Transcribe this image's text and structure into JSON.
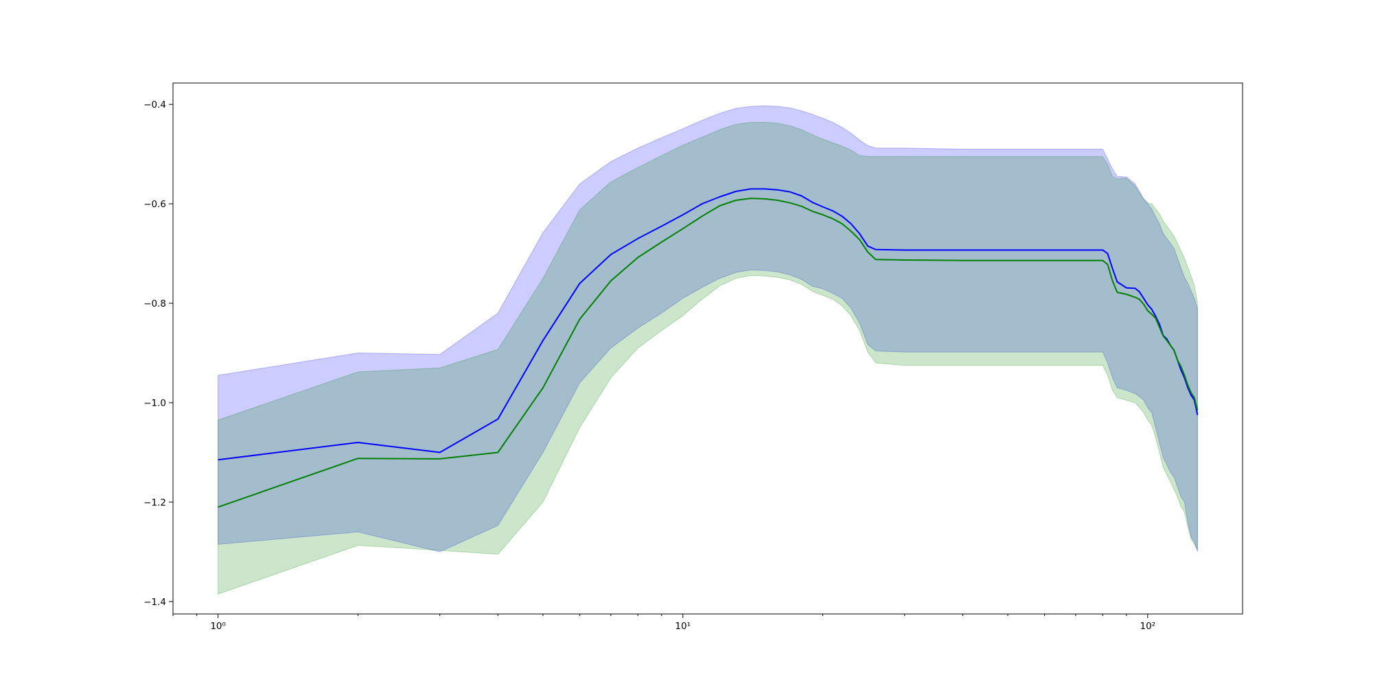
{
  "chart_data": {
    "type": "area",
    "title": "",
    "xlabel": "",
    "ylabel": "",
    "xscale": "log",
    "xlim": [
      0.8,
      160
    ],
    "ylim": [
      -1.425,
      -0.357
    ],
    "grid": false,
    "legend": "none",
    "x_ticks": [
      {
        "value": 1,
        "label": "10⁰"
      },
      {
        "value": 10,
        "label": "10¹"
      },
      {
        "value": 100,
        "label": "10²"
      }
    ],
    "y_ticks": [
      {
        "value": -0.4,
        "label": "−0.4"
      },
      {
        "value": -0.6,
        "label": "−0.6"
      },
      {
        "value": -0.8,
        "label": "−0.8"
      },
      {
        "value": -1.0,
        "label": "−1.0"
      },
      {
        "value": -1.2,
        "label": "−1.2"
      },
      {
        "value": -1.4,
        "label": "−1.4"
      }
    ],
    "series": [
      {
        "color": "#0000ff",
        "band_color": "#0000ff",
        "band_opacity": 0.2,
        "x": [
          1,
          2,
          3,
          4,
          5,
          6,
          7,
          8,
          9,
          10,
          11,
          12,
          13,
          14,
          15,
          16,
          17,
          18,
          19,
          20,
          21,
          22,
          23,
          24,
          25,
          26,
          30,
          40,
          60,
          80,
          82,
          84,
          86,
          90,
          94,
          96,
          98,
          100,
          102,
          104,
          106,
          108,
          110,
          112,
          114,
          116,
          118,
          120,
          122,
          124,
          126,
          128
        ],
        "values": [
          -1.115,
          -1.08,
          -1.1,
          -1.033,
          -0.875,
          -0.76,
          -0.702,
          -0.67,
          -0.645,
          -0.622,
          -0.6,
          -0.586,
          -0.575,
          -0.57,
          -0.57,
          -0.572,
          -0.576,
          -0.584,
          -0.597,
          -0.606,
          -0.614,
          -0.625,
          -0.64,
          -0.66,
          -0.685,
          -0.692,
          -0.693,
          -0.693,
          -0.693,
          -0.693,
          -0.7,
          -0.73,
          -0.757,
          -0.769,
          -0.77,
          -0.777,
          -0.79,
          -0.803,
          -0.812,
          -0.826,
          -0.842,
          -0.865,
          -0.872,
          -0.885,
          -0.895,
          -0.915,
          -0.935,
          -0.95,
          -0.97,
          -0.985,
          -0.995,
          -1.025
        ],
        "upper": [
          -0.945,
          -0.9,
          -0.903,
          -0.82,
          -0.658,
          -0.56,
          -0.515,
          -0.488,
          -0.467,
          -0.449,
          -0.432,
          -0.418,
          -0.408,
          -0.404,
          -0.403,
          -0.404,
          -0.407,
          -0.413,
          -0.42,
          -0.428,
          -0.436,
          -0.446,
          -0.458,
          -0.472,
          -0.483,
          -0.488,
          -0.488,
          -0.49,
          -0.49,
          -0.49,
          -0.51,
          -0.53,
          -0.545,
          -0.546,
          -0.56,
          -0.575,
          -0.59,
          -0.6,
          -0.61,
          -0.626,
          -0.64,
          -0.66,
          -0.67,
          -0.68,
          -0.69,
          -0.71,
          -0.73,
          -0.748,
          -0.76,
          -0.775,
          -0.79,
          -0.812
        ],
        "lower": [
          -1.285,
          -1.26,
          -1.3,
          -1.247,
          -1.1,
          -0.96,
          -0.89,
          -0.85,
          -0.82,
          -0.79,
          -0.768,
          -0.75,
          -0.738,
          -0.733,
          -0.734,
          -0.737,
          -0.743,
          -0.752,
          -0.766,
          -0.771,
          -0.78,
          -0.79,
          -0.81,
          -0.84,
          -0.883,
          -0.896,
          -0.898,
          -0.898,
          -0.898,
          -0.898,
          -0.92,
          -0.95,
          -0.97,
          -0.975,
          -0.982,
          -0.988,
          -0.995,
          -1.01,
          -1.02,
          -1.05,
          -1.08,
          -1.11,
          -1.125,
          -1.14,
          -1.15,
          -1.17,
          -1.19,
          -1.2,
          -1.24,
          -1.27,
          -1.28,
          -1.3
        ]
      },
      {
        "color": "#008000",
        "band_color": "#008000",
        "band_opacity": 0.2,
        "x": [
          1,
          2,
          3,
          4,
          5,
          6,
          7,
          8,
          9,
          10,
          11,
          12,
          13,
          14,
          15,
          16,
          17,
          18,
          19,
          20,
          21,
          22,
          23,
          24,
          25,
          26,
          30,
          40,
          60,
          80,
          82,
          84,
          86,
          90,
          94,
          96,
          98,
          100,
          102,
          104,
          106,
          108,
          110,
          112,
          114,
          116,
          118,
          120,
          122,
          124,
          126,
          128
        ],
        "values": [
          -1.21,
          -1.112,
          -1.113,
          -1.1,
          -0.97,
          -0.832,
          -0.755,
          -0.708,
          -0.677,
          -0.65,
          -0.625,
          -0.604,
          -0.593,
          -0.589,
          -0.59,
          -0.593,
          -0.598,
          -0.605,
          -0.615,
          -0.622,
          -0.63,
          -0.64,
          -0.655,
          -0.672,
          -0.697,
          -0.712,
          -0.713,
          -0.714,
          -0.714,
          -0.714,
          -0.722,
          -0.755,
          -0.778,
          -0.782,
          -0.788,
          -0.792,
          -0.802,
          -0.815,
          -0.822,
          -0.83,
          -0.848,
          -0.866,
          -0.875,
          -0.885,
          -0.895,
          -0.915,
          -0.928,
          -0.945,
          -0.965,
          -0.98,
          -0.99,
          -1.015
        ],
        "upper": [
          -1.035,
          -0.938,
          -0.93,
          -0.893,
          -0.75,
          -0.612,
          -0.556,
          -0.527,
          -0.503,
          -0.482,
          -0.466,
          -0.451,
          -0.44,
          -0.436,
          -0.436,
          -0.438,
          -0.443,
          -0.451,
          -0.461,
          -0.47,
          -0.477,
          -0.484,
          -0.492,
          -0.503,
          -0.505,
          -0.505,
          -0.505,
          -0.505,
          -0.505,
          -0.505,
          -0.52,
          -0.545,
          -0.55,
          -0.548,
          -0.565,
          -0.578,
          -0.59,
          -0.598,
          -0.6,
          -0.61,
          -0.62,
          -0.635,
          -0.645,
          -0.655,
          -0.665,
          -0.68,
          -0.695,
          -0.71,
          -0.728,
          -0.745,
          -0.765,
          -0.8
        ],
        "lower": [
          -1.385,
          -1.287,
          -1.297,
          -1.305,
          -1.2,
          -1.05,
          -0.95,
          -0.89,
          -0.855,
          -0.825,
          -0.792,
          -0.765,
          -0.75,
          -0.744,
          -0.745,
          -0.748,
          -0.753,
          -0.762,
          -0.776,
          -0.784,
          -0.792,
          -0.805,
          -0.825,
          -0.855,
          -0.898,
          -0.92,
          -0.925,
          -0.925,
          -0.925,
          -0.925,
          -0.945,
          -0.975,
          -0.99,
          -0.995,
          -1.0,
          -1.01,
          -1.02,
          -1.035,
          -1.045,
          -1.07,
          -1.1,
          -1.13,
          -1.145,
          -1.16,
          -1.175,
          -1.19,
          -1.21,
          -1.22,
          -1.25,
          -1.275,
          -1.285,
          -1.295
        ]
      }
    ]
  }
}
